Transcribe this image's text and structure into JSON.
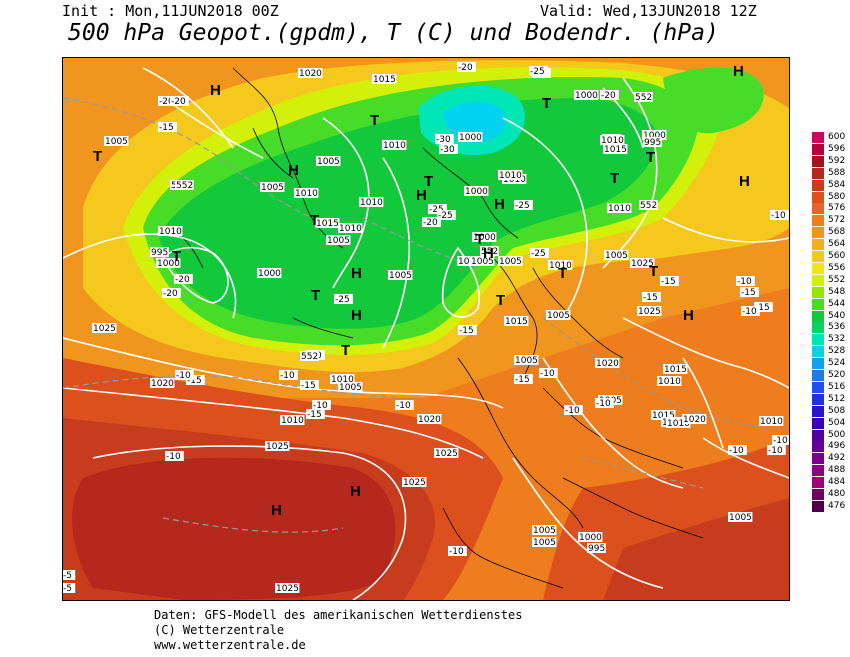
{
  "header": {
    "init": "Init : Mon,11JUN2018 00Z",
    "valid": "Valid: Wed,13JUN2018 12Z",
    "title": "500 hPa Geopot.(gpdm), T (C) und Bodendr. (hPa)"
  },
  "colorbar": {
    "levels": [
      "600",
      "596",
      "592",
      "588",
      "584",
      "580",
      "576",
      "572",
      "568",
      "564",
      "560",
      "556",
      "552",
      "548",
      "544",
      "540",
      "536",
      "532",
      "528",
      "524",
      "520",
      "516",
      "512",
      "508",
      "504",
      "500",
      "496",
      "492",
      "488",
      "484",
      "480",
      "476"
    ],
    "colors": [
      "#d4005e",
      "#b5003a",
      "#a0141e",
      "#b4281e",
      "#c83c1e",
      "#dc501e",
      "#e66428",
      "#ee7d1e",
      "#f0961e",
      "#f5af1e",
      "#f5c81e",
      "#f0e614",
      "#d2f00a",
      "#96e600",
      "#46dc28",
      "#14c83c",
      "#0ad264",
      "#00e6b4",
      "#00d2f0",
      "#14a0f0",
      "#1e78f0",
      "#1e50f0",
      "#1e32dc",
      "#2814c8",
      "#3c00b4",
      "#5000a0",
      "#640096",
      "#78008c",
      "#8c0082",
      "#a00078",
      "#6e0064",
      "#50004b"
    ]
  },
  "map_labels": {
    "pressure": [
      "1020",
      "1015",
      "1005",
      "1010",
      "1005",
      "1010",
      "1000",
      "1010",
      "1000",
      "995",
      "1000",
      "1005",
      "1010",
      "1015",
      "1005",
      "1010",
      "1000",
      "1010",
      "1000",
      "995",
      "1015",
      "1010",
      "1005",
      "1025",
      "1025",
      "1020",
      "1005",
      "1010",
      "1015",
      "1020",
      "1025",
      "1020",
      "1010",
      "1005",
      "1005",
      "1005",
      "1000",
      "1005",
      "1010",
      "1005",
      "1010",
      "1015",
      "1025",
      "1020",
      "1010",
      "1025",
      "1005",
      "1005",
      "995",
      "1000",
      "1005",
      "1010",
      "1010",
      "1000",
      "1000",
      "995",
      "1005",
      "1010",
      "1015",
      "1020",
      "1025",
      "1025"
    ],
    "temperature": [
      "-20",
      "-20",
      "-15",
      "-20",
      "-25",
      "-25",
      "-25",
      "-30",
      "-30",
      "-25",
      "-20",
      "-25",
      "-25",
      "-25",
      "-20",
      "-15",
      "-20",
      "-20",
      "-15",
      "-10",
      "-10",
      "-15",
      "-10",
      "-10",
      "-15",
      "-15",
      "-10",
      "-10",
      "-10",
      "-10",
      "-15",
      "-10",
      "-10",
      "-15",
      "-10",
      "-10",
      "-10",
      "-10",
      "-10",
      "-10",
      "-5",
      "-5",
      "-20",
      "-15",
      "-15"
    ],
    "contour_552": [
      "552",
      "552",
      "552",
      "552",
      "552",
      "552"
    ],
    "highs_lows": [
      "H",
      "H",
      "H",
      "H",
      "H",
      "H",
      "H",
      "H",
      "H",
      "H",
      "H",
      "H",
      "T",
      "T",
      "T",
      "T",
      "T",
      "T",
      "T",
      "T",
      "T",
      "T",
      "T",
      "T",
      "T",
      "T",
      "T",
      "T",
      "T"
    ]
  },
  "footer": {
    "line1": "Daten: GFS-Modell des amerikanischen Wetterdienstes",
    "line2": "(C) Wetterzentrale",
    "line3": "www.wetterzentrale.de"
  }
}
